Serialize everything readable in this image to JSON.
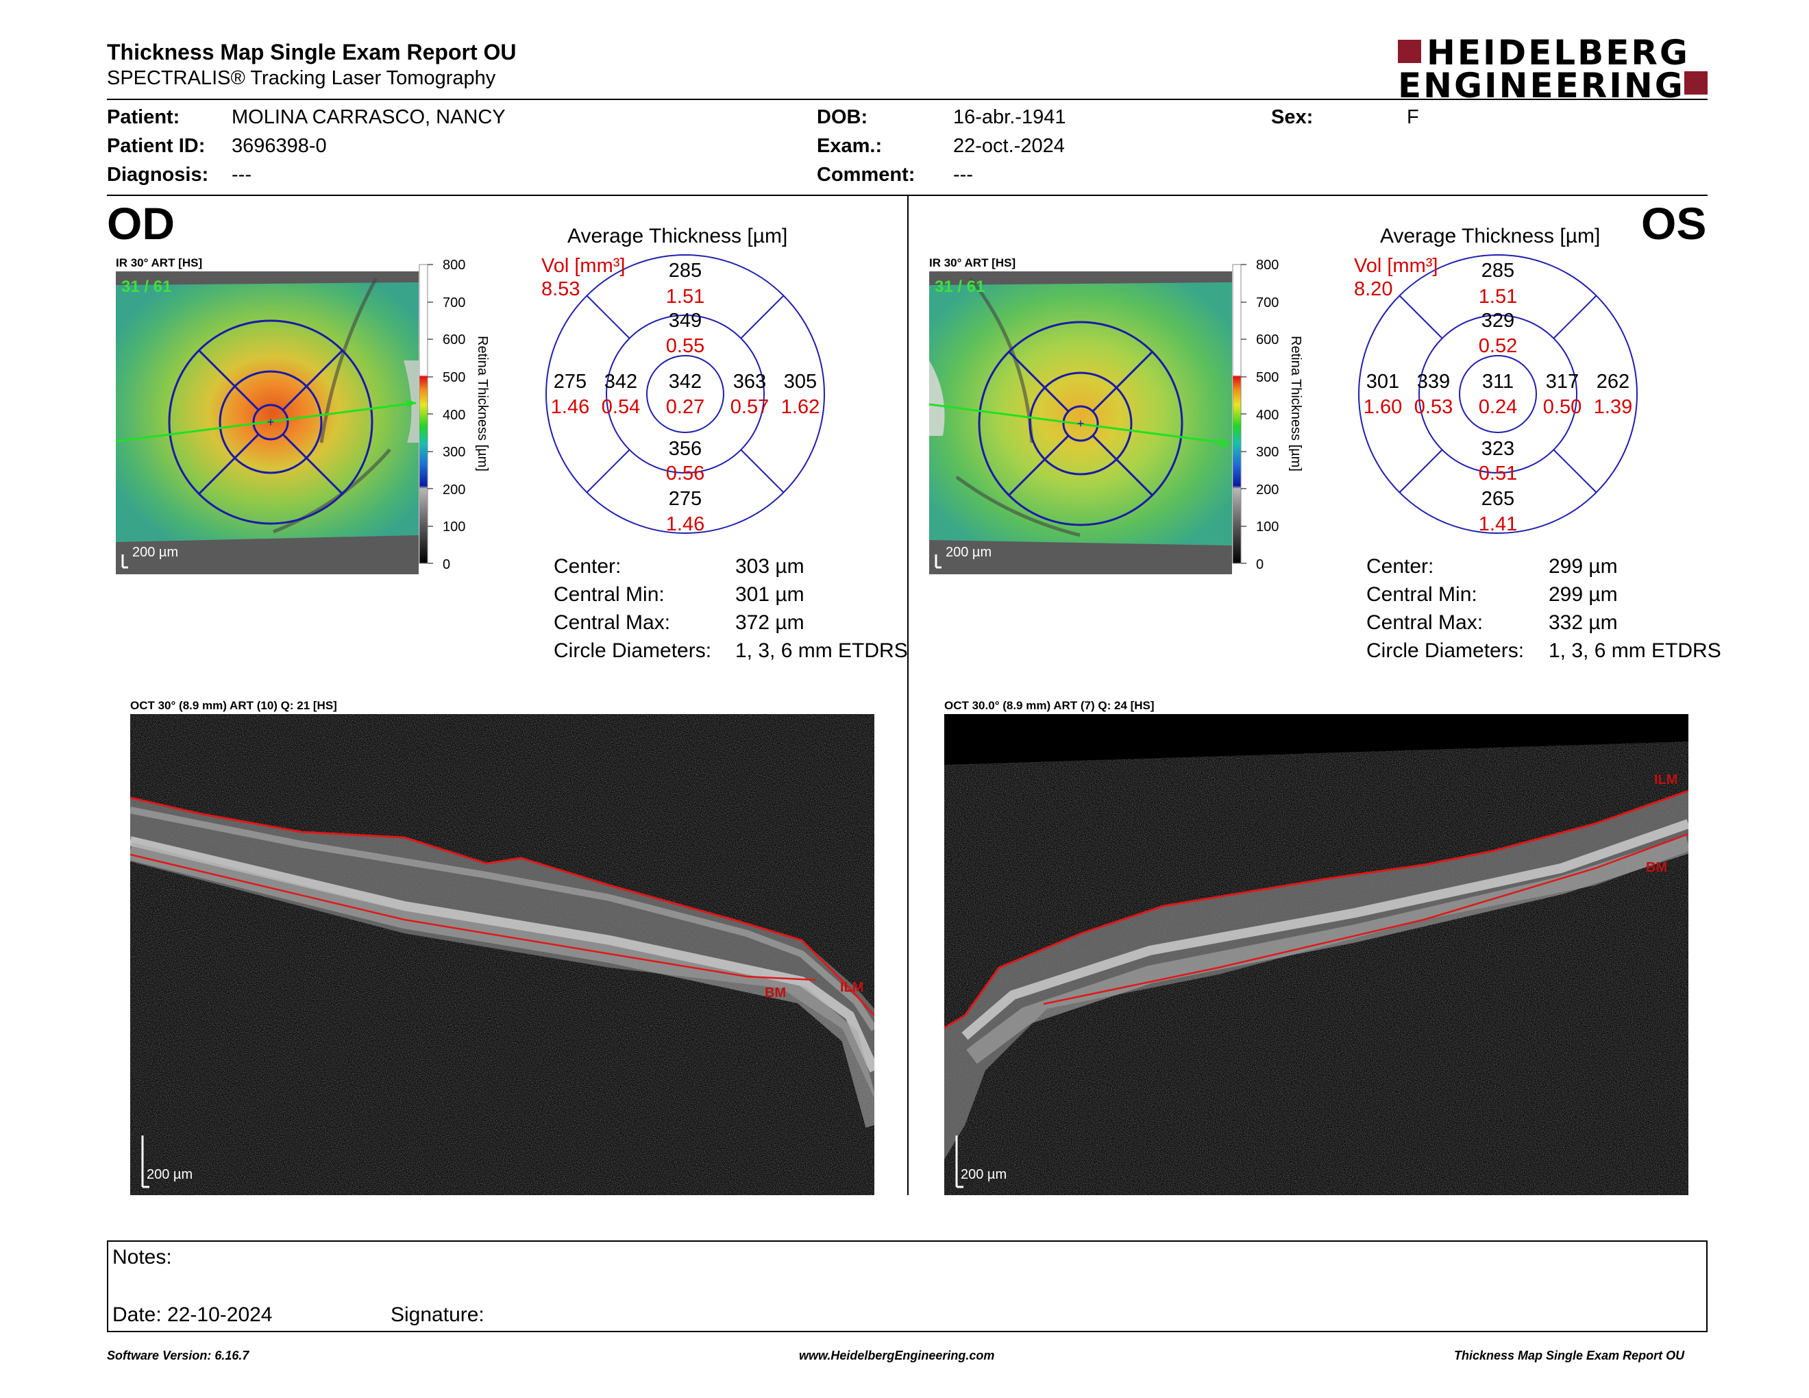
{
  "header": {
    "title": "Thickness Map Single Exam Report OU",
    "subtitle": "SPECTRALIS® Tracking Laser Tomography",
    "logo_line1": "HEIDELBERG",
    "logo_line2": "ENGINEERING"
  },
  "patient": {
    "patient_label": "Patient:",
    "patient_value": "MOLINA CARRASCO, NANCY",
    "id_label": "Patient ID:",
    "id_value": "3696398-0",
    "diag_label": "Diagnosis:",
    "diag_value": "---",
    "dob_label": "DOB:",
    "dob_value": "16-abr.-1941",
    "exam_label": "Exam.:",
    "exam_value": "22-oct.-2024",
    "comment_label": "Comment:",
    "comment_value": "---",
    "sex_label": "Sex:",
    "sex_value": "F"
  },
  "od": {
    "eye": "OD",
    "ir_label": "IR 30° ART [HS]",
    "frame": "31 / 61",
    "scale": "200 µm",
    "avg_title": "Average Thickness [µm]",
    "vol_label": "Vol [mm³]",
    "vol_value": "8.53",
    "grid": {
      "center": [
        "342",
        "0.27"
      ],
      "inner_top": [
        "349",
        "0.55"
      ],
      "inner_bottom": [
        "356",
        "0.56"
      ],
      "inner_left": [
        "342",
        "0.54"
      ],
      "inner_right": [
        "363",
        "0.57"
      ],
      "outer_top": [
        "285",
        "1.51"
      ],
      "outer_bottom": [
        "275",
        "1.46"
      ],
      "outer_left": [
        "275",
        "1.46"
      ],
      "outer_right": [
        "305",
        "1.62"
      ]
    },
    "stats": [
      {
        "label": "Center:",
        "value": "303 µm"
      },
      {
        "label": "Central Min:",
        "value": "301 µm"
      },
      {
        "label": "Central Max:",
        "value": "372 µm"
      },
      {
        "label": "Circle Diameters:",
        "value": "1, 3, 6 mm ETDRS"
      }
    ],
    "oct_label": "OCT 30° (8.9 mm) ART (10) Q: 21 [HS]",
    "oct_scale": "200 µm",
    "ilm": "ILM",
    "bm": "BM"
  },
  "os": {
    "eye": "OS",
    "ir_label": "IR 30° ART [HS]",
    "frame": "31 / 61",
    "scale": "200 µm",
    "avg_title": "Average Thickness [µm]",
    "vol_label": "Vol [mm³]",
    "vol_value": "8.20",
    "grid": {
      "center": [
        "311",
        "0.24"
      ],
      "inner_top": [
        "329",
        "0.52"
      ],
      "inner_bottom": [
        "323",
        "0.51"
      ],
      "inner_left": [
        "339",
        "0.53"
      ],
      "inner_right": [
        "317",
        "0.50"
      ],
      "outer_top": [
        "285",
        "1.51"
      ],
      "outer_bottom": [
        "265",
        "1.41"
      ],
      "outer_left": [
        "301",
        "1.60"
      ],
      "outer_right": [
        "262",
        "1.39"
      ]
    },
    "stats": [
      {
        "label": "Center:",
        "value": "299 µm"
      },
      {
        "label": "Central Min:",
        "value": "299 µm"
      },
      {
        "label": "Central Max:",
        "value": "332 µm"
      },
      {
        "label": "Circle Diameters:",
        "value": "1, 3, 6 mm ETDRS"
      }
    ],
    "oct_label": "OCT 30.0° (8.9 mm) ART (7) Q: 24 [HS]",
    "oct_scale": "200 µm",
    "ilm": "ILM",
    "bm": "BM"
  },
  "colorbar": {
    "ticks": [
      "800",
      "700",
      "600",
      "500",
      "400",
      "300",
      "200",
      "100",
      "0"
    ],
    "label": "Retina Thickness [µm]"
  },
  "notes": {
    "notes_label": "Notes:",
    "date_label": "Date: 22-10-2024",
    "signature_label": "Signature:"
  },
  "footer": {
    "left": "Software Version: 6.16.7",
    "center": "www.HeidelbergEngineering.com",
    "right": "Thickness Map Single Exam Report OU"
  },
  "colors": {
    "accent_red": "#d40000",
    "grid_blue": "#1f1fb0",
    "logo_red": "#8b1a2b"
  }
}
